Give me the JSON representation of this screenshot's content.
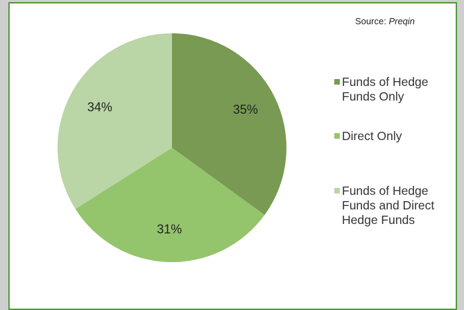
{
  "chart_data": {
    "type": "pie",
    "source_label": "Source:",
    "source": "Preqin",
    "categories": [
      "Funds of Hedge Funds Only",
      "Direct Only",
      "Funds of Hedge Funds and Direct Hedge Funds"
    ],
    "values": [
      35,
      31,
      34
    ],
    "value_labels": [
      "35%",
      "31%",
      "34%"
    ],
    "colors": [
      "#789a52",
      "#94c46c",
      "#bad5a6"
    ],
    "legend": "right"
  }
}
